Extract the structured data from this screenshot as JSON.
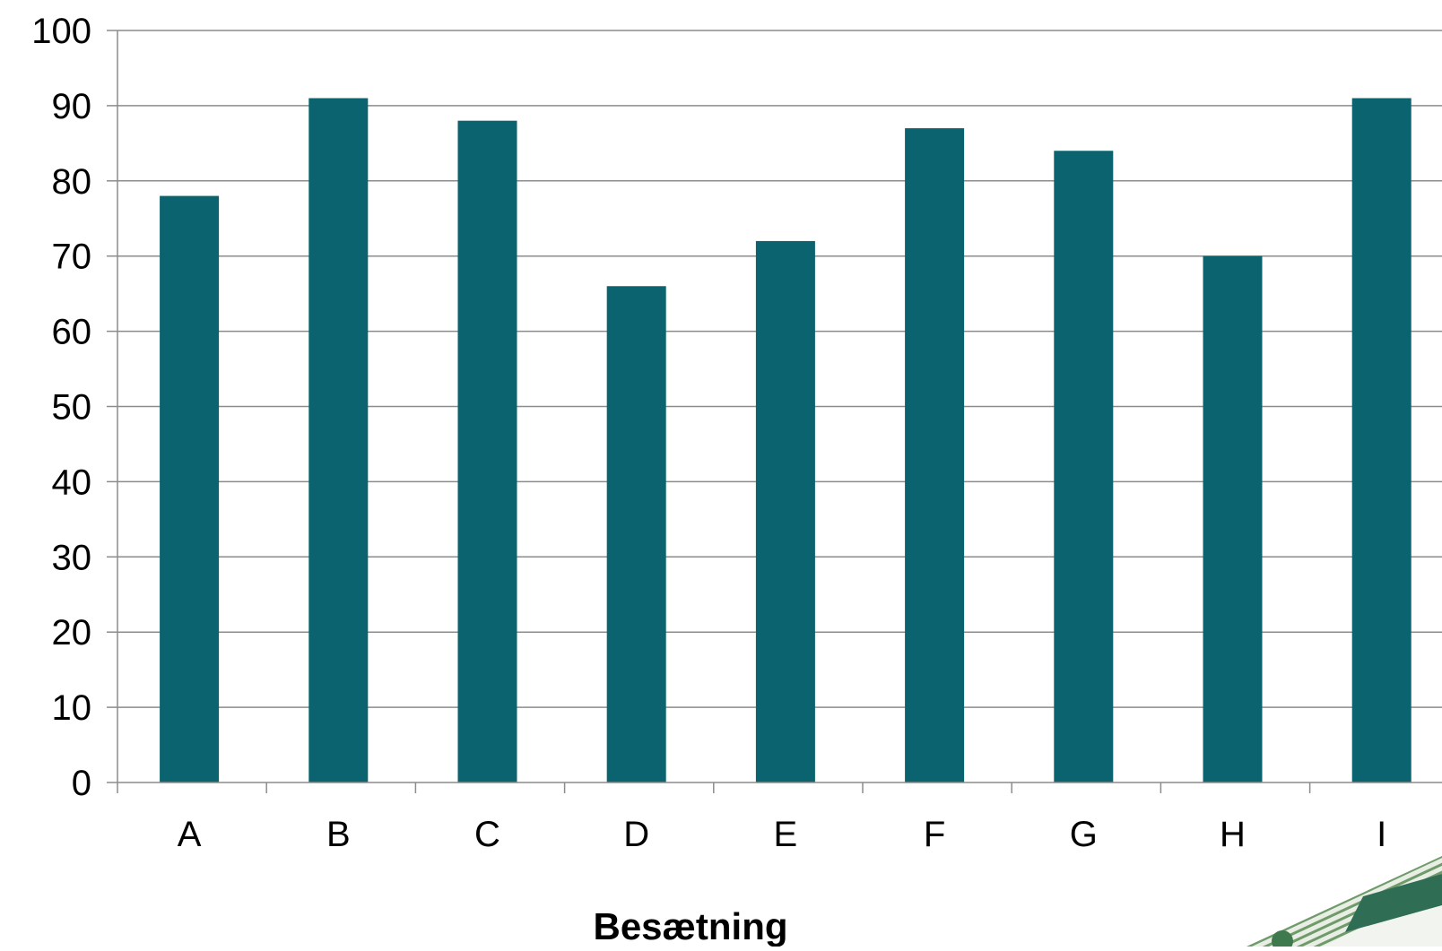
{
  "chart_data": {
    "type": "bar",
    "categories": [
      "A",
      "B",
      "C",
      "D",
      "E",
      "F",
      "G",
      "H",
      "I"
    ],
    "values": [
      78,
      91,
      88,
      66,
      72,
      87,
      84,
      70,
      91
    ],
    "title": "",
    "xlabel": "Besætning",
    "ylabel": "",
    "ylim": [
      0,
      100
    ],
    "yticks": [
      "0",
      "10",
      "20",
      "30",
      "40",
      "50",
      "60",
      "70",
      "80",
      "90",
      "100"
    ],
    "grid": true,
    "legend": "none",
    "colors": {
      "bar": "#0a636f",
      "grid": "#8c8c8c",
      "axis": "#8c8c8c",
      "text": "#000000"
    }
  },
  "decoration": {
    "corner_logo": "logo-graphic"
  }
}
